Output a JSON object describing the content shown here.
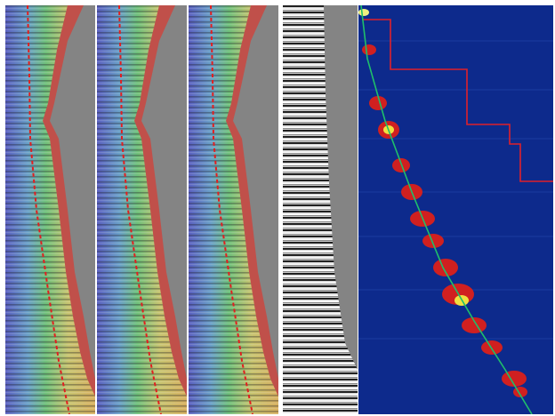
{
  "figure": {
    "panels": [
      {
        "id": "velocity-panel-1",
        "kind": "colored-seismic-section"
      },
      {
        "id": "velocity-panel-2",
        "kind": "colored-seismic-section"
      },
      {
        "id": "velocity-panel-3",
        "kind": "colored-seismic-section"
      },
      {
        "id": "gather-panel",
        "kind": "grayscale-seismic-gather"
      },
      {
        "id": "semblance-panel",
        "kind": "semblance-heatmap"
      }
    ],
    "colors": {
      "background_gray": "#848484",
      "dashed_trend": "#e11f1f",
      "semblance_background": "#0d2a8c",
      "semblance_pick_line": "#1fbf6a",
      "semblance_step_line": "#e0202a",
      "mute_zone": "#c0504a"
    },
    "icons": [
      "colored-section-image",
      "grayscale-gather-image",
      "semblance-heatmap-image"
    ]
  }
}
